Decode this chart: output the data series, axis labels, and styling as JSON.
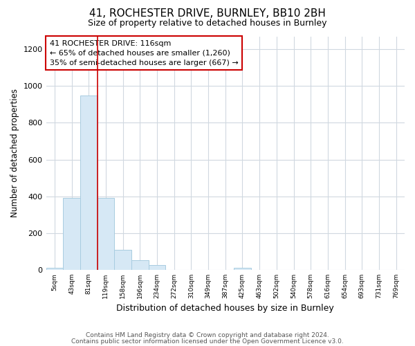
{
  "title": "41, ROCHESTER DRIVE, BURNLEY, BB10 2BH",
  "subtitle": "Size of property relative to detached houses in Burnley",
  "xlabel": "Distribution of detached houses by size in Burnley",
  "ylabel": "Number of detached properties",
  "footnote1": "Contains HM Land Registry data © Crown copyright and database right 2024.",
  "footnote2": "Contains public sector information licensed under the Open Government Licence v3.0.",
  "categories": [
    "5sqm",
    "43sqm",
    "81sqm",
    "119sqm",
    "158sqm",
    "196sqm",
    "234sqm",
    "272sqm",
    "310sqm",
    "349sqm",
    "387sqm",
    "425sqm",
    "463sqm",
    "502sqm",
    "540sqm",
    "578sqm",
    "616sqm",
    "654sqm",
    "693sqm",
    "731sqm",
    "769sqm"
  ],
  "values": [
    10,
    390,
    950,
    390,
    110,
    52,
    25,
    0,
    0,
    0,
    0,
    10,
    0,
    0,
    0,
    0,
    0,
    0,
    0,
    0,
    0
  ],
  "bar_color": "#d6e8f5",
  "bar_edge_color": "#a8cce0",
  "vline_x": 3,
  "vline_color": "#cc0000",
  "annotation_text": "41 ROCHESTER DRIVE: 116sqm\n← 65% of detached houses are smaller (1,260)\n35% of semi-detached houses are larger (667) →",
  "annotation_box_color": "white",
  "annotation_box_edge_color": "#cc0000",
  "ylim": [
    0,
    1270
  ],
  "yticks": [
    0,
    200,
    400,
    600,
    800,
    1000,
    1200
  ],
  "background_color": "#ffffff",
  "plot_background_color": "#ffffff",
  "grid_color": "#d0d8e0"
}
